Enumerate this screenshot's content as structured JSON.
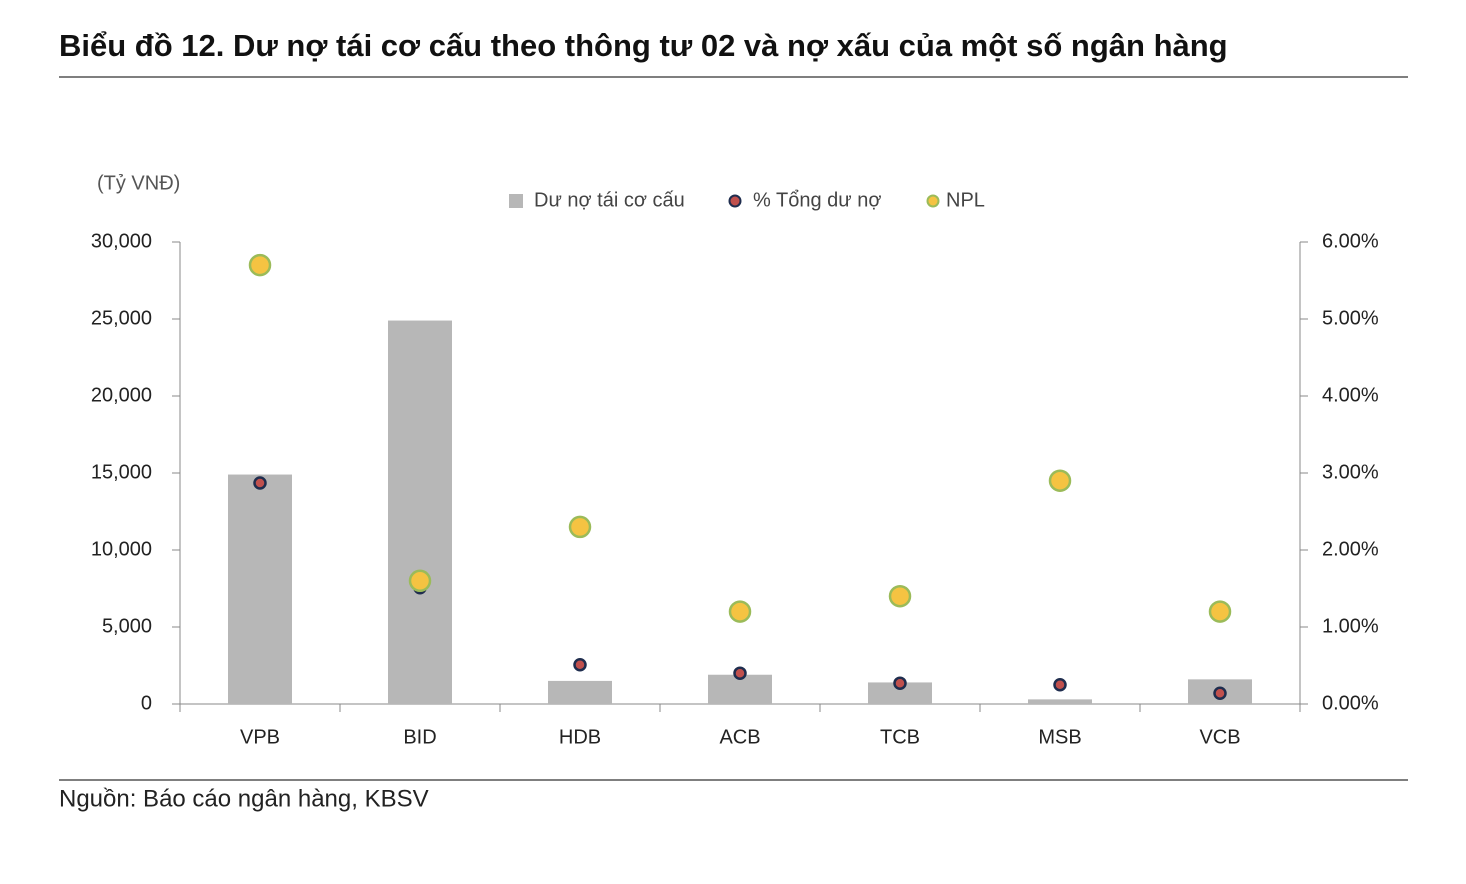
{
  "chart_data": {
    "type": "bar",
    "title": "Biểu đồ 12. Dư nợ tái cơ cấu theo thông tư 02 và nợ xấu của một số ngân hàng",
    "y_axis_label": "(Tỷ VNĐ)",
    "source": "Nguồn: Báo cáo ngân hàng, KBSV",
    "categories": [
      "VPB",
      "BID",
      "HDB",
      "ACB",
      "TCB",
      "MSB",
      "VCB"
    ],
    "series": [
      {
        "name": "Dư nợ tái cơ cấu",
        "type": "bar",
        "color": "#b7b7b7",
        "values": [
          14900,
          24900,
          1500,
          1900,
          1400,
          300,
          1600
        ]
      },
      {
        "name": "% Tổng dư nợ",
        "type": "scatter",
        "axis": "y2",
        "color": "#c0504d",
        "edge": "#1f2d4e",
        "values": [
          2.87,
          1.51,
          0.51,
          0.4,
          0.27,
          0.25,
          0.14
        ]
      },
      {
        "name": "NPL",
        "type": "scatter",
        "axis": "y2",
        "color": "#f5c342",
        "edge": "#9bbb59",
        "values": [
          5.7,
          1.6,
          2.3,
          1.2,
          1.4,
          2.9,
          1.2
        ]
      }
    ],
    "ylim": [
      0,
      30000
    ],
    "yticks": [
      0,
      {
        "value": 5000,
        "label": "5,000"
      },
      {
        "value": 10000,
        "label": "10,000"
      },
      {
        "value": 15000,
        "label": "15,000"
      },
      {
        "value": 20000,
        "label": "20,000"
      },
      {
        "value": 25000,
        "label": "25,000"
      },
      {
        "value": 30000,
        "label": "30,000"
      }
    ],
    "y2lim": [
      0,
      6
    ],
    "y2ticks": [
      {
        "value": 0,
        "label": "0.00%"
      },
      {
        "value": 1,
        "label": "1.00%"
      },
      {
        "value": 2,
        "label": "2.00%"
      },
      {
        "value": 3,
        "label": "3.00%"
      },
      {
        "value": 4,
        "label": "4.00%"
      },
      {
        "value": 5,
        "label": "5.00%"
      },
      {
        "value": 6,
        "label": "6.00%"
      }
    ],
    "grid": false
  }
}
